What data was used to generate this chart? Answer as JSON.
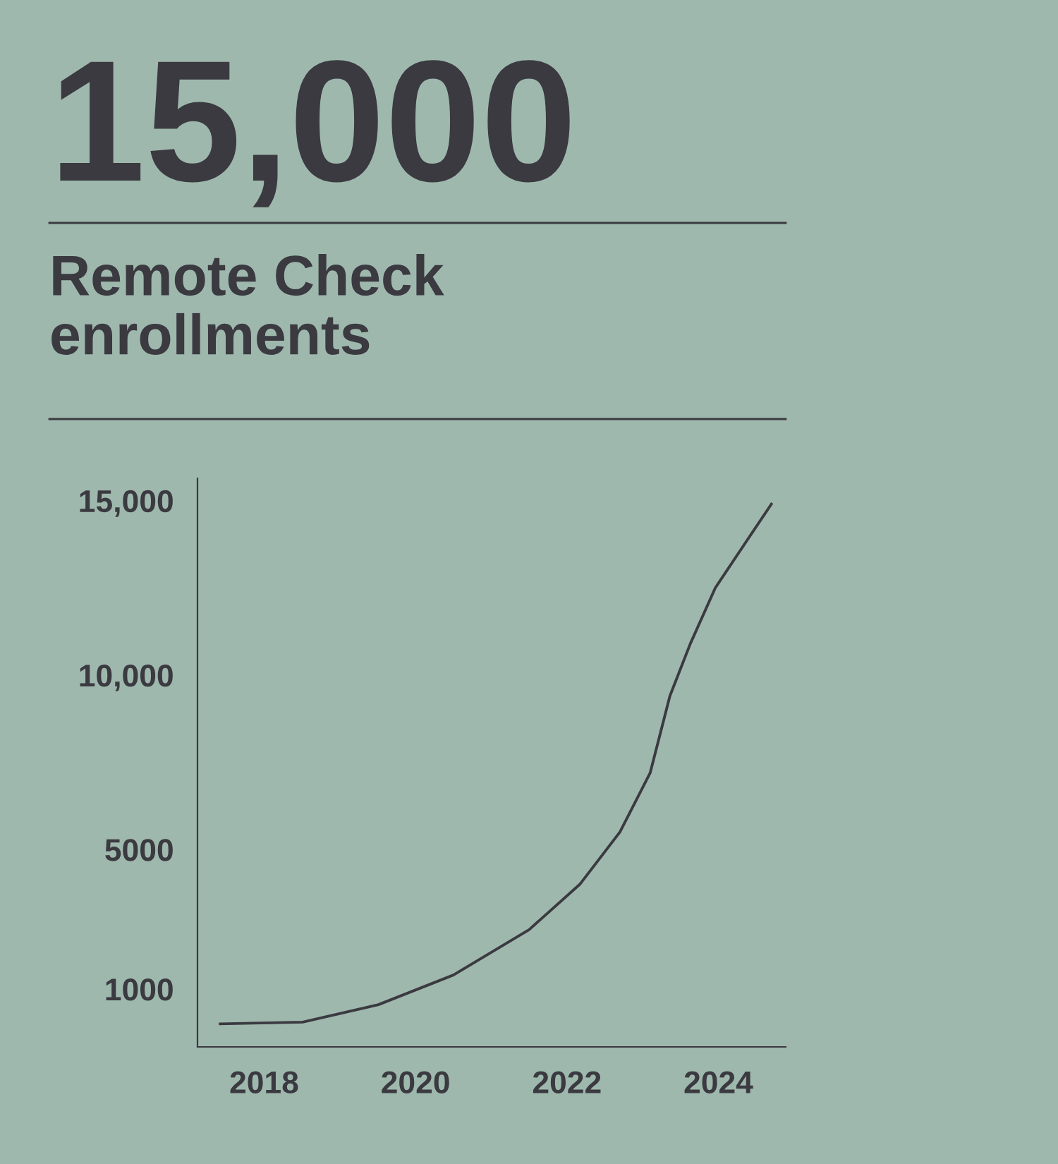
{
  "chart_data": {
    "type": "line",
    "title": "15,000",
    "subtitle": "Remote Check\nenrollments",
    "x": [
      2017.42,
      2018.51,
      2019.51,
      2020.5,
      2021.5,
      2022.17,
      2022.7,
      2023.1,
      2023.36,
      2023.63,
      2023.96,
      2024.36,
      2024.7
    ],
    "series": [
      {
        "color": "#3a3a40",
        "values": [
          0,
          50,
          550,
          1400,
          2700,
          4000,
          5500,
          7200,
          9400,
          10900,
          12500,
          13800,
          14900
        ]
      }
    ],
    "xlim": [
      2017.12,
      2024.89
    ],
    "ylim": [
      -660,
      15640
    ],
    "xticks": [
      2018,
      2020,
      2022,
      2024
    ],
    "yticks": [
      {
        "value": 1000,
        "label": "1000"
      },
      {
        "value": 5000,
        "label": "5000"
      },
      {
        "value": 10000,
        "label": "10,000"
      },
      {
        "value": 15000,
        "label": "15,000"
      }
    ]
  }
}
